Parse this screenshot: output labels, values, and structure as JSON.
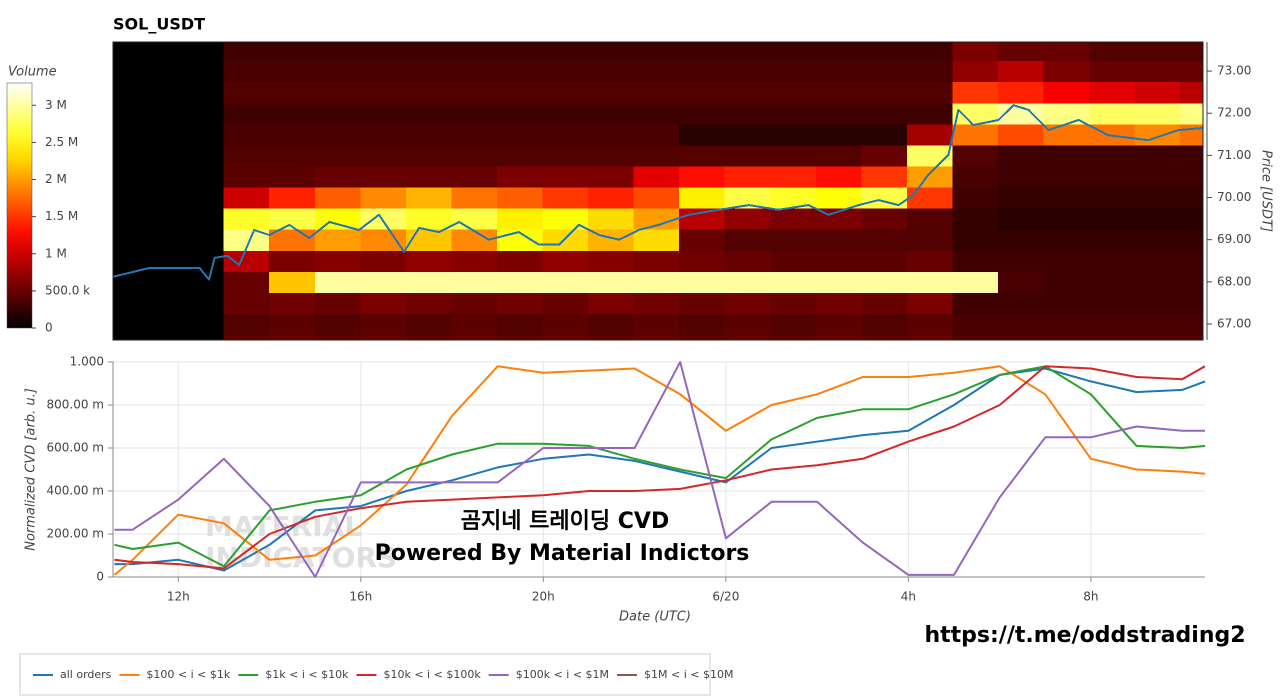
{
  "chart_data": [
    {
      "type": "heatmap",
      "title": "SOL_USDT",
      "ylabel": "Price [USDT]",
      "xlim": [
        10.57,
        34.5
      ],
      "ylim": [
        66.62,
        73.69
      ],
      "yticks": [
        {
          "value": 67,
          "label": "67.00"
        },
        {
          "value": 68,
          "label": "68.00"
        },
        {
          "value": 69,
          "label": "69.00"
        },
        {
          "value": 70,
          "label": "70.00"
        },
        {
          "value": 71,
          "label": "71.00"
        },
        {
          "value": 72,
          "label": "72.00"
        },
        {
          "value": 73,
          "label": "73.00"
        }
      ],
      "x_bins": [
        13,
        14,
        15,
        16,
        17,
        18,
        19,
        20,
        21,
        22,
        23,
        24,
        25,
        26,
        27,
        28,
        29,
        30,
        31,
        32,
        33,
        34,
        34.5
      ],
      "y_levels": [
        66.5,
        67,
        67.5,
        68,
        68.5,
        69,
        69.5,
        70,
        70.5,
        71,
        71.5,
        72,
        72.5,
        73,
        73.5
      ],
      "z": [
        [
          450000,
          500000,
          450000,
          500000,
          450000,
          500000,
          450000,
          500000,
          450000,
          500000,
          450000,
          500000,
          450000,
          500000,
          450000,
          500000,
          400000,
          400000,
          400000,
          400000,
          400000,
          400000
        ],
        [
          400000,
          450000,
          400000,
          450000,
          400000,
          450000,
          400000,
          450000,
          400000,
          450000,
          400000,
          450000,
          400000,
          450000,
          400000,
          450000,
          350000,
          350000,
          350000,
          350000,
          350000,
          350000
        ],
        [
          500000,
          550000,
          500000,
          600000,
          550000,
          500000,
          550000,
          500000,
          600000,
          550000,
          500000,
          550000,
          500000,
          550000,
          500000,
          600000,
          300000,
          300000,
          300000,
          300000,
          300000,
          300000
        ],
        [
          500000,
          2200000,
          3000000,
          3000000,
          3000000,
          3000000,
          3000000,
          3000000,
          3000000,
          3000000,
          3000000,
          3000000,
          3000000,
          3000000,
          3000000,
          3000000,
          3000000,
          350000,
          300000,
          300000,
          300000,
          300000
        ],
        [
          900000,
          600000,
          650000,
          600000,
          700000,
          650000,
          600000,
          700000,
          650000,
          600000,
          550000,
          500000,
          450000,
          450000,
          450000,
          500000,
          300000,
          300000,
          300000,
          300000,
          300000,
          300000
        ],
        [
          2900000,
          1800000,
          2000000,
          1900000,
          2200000,
          1900000,
          2500000,
          2300000,
          2100000,
          2300000,
          500000,
          400000,
          400000,
          400000,
          400000,
          400000,
          250000,
          250000,
          250000,
          250000,
          250000,
          250000
        ],
        [
          2600000,
          2700000,
          2500000,
          2800000,
          2600000,
          2700000,
          2400000,
          2500000,
          2300000,
          2000000,
          900000,
          700000,
          600000,
          600000,
          500000,
          400000,
          250000,
          200000,
          200000,
          200000,
          200000,
          200000
        ],
        [
          1000000,
          1400000,
          1700000,
          1900000,
          2100000,
          1800000,
          1700000,
          1500000,
          1400000,
          1600000,
          2400000,
          2700000,
          2600000,
          2500000,
          2700000,
          1500000,
          300000,
          250000,
          250000,
          250000,
          250000,
          250000
        ],
        [
          450000,
          450000,
          500000,
          500000,
          500000,
          500000,
          600000,
          600000,
          600000,
          1100000,
          1300000,
          1400000,
          1400000,
          1300000,
          1500000,
          2000000,
          350000,
          300000,
          300000,
          300000,
          300000,
          300000
        ],
        [
          400000,
          400000,
          400000,
          400000,
          400000,
          400000,
          400000,
          400000,
          400000,
          400000,
          400000,
          400000,
          400000,
          400000,
          500000,
          2800000,
          400000,
          300000,
          300000,
          300000,
          300000,
          300000
        ],
        [
          350000,
          350000,
          350000,
          350000,
          350000,
          350000,
          350000,
          350000,
          350000,
          350000,
          200000,
          200000,
          200000,
          200000,
          200000,
          800000,
          1800000,
          1600000,
          1800000,
          1800000,
          1900000,
          1800000
        ],
        [
          300000,
          300000,
          300000,
          300000,
          300000,
          300000,
          300000,
          300000,
          300000,
          300000,
          300000,
          300000,
          300000,
          300000,
          300000,
          300000,
          2800000,
          3000000,
          2900000,
          2800000,
          2800000,
          2900000
        ],
        [
          400000,
          400000,
          400000,
          400000,
          400000,
          400000,
          400000,
          400000,
          400000,
          400000,
          400000,
          400000,
          400000,
          400000,
          400000,
          400000,
          1500000,
          1400000,
          1200000,
          1100000,
          1000000,
          900000
        ],
        [
          350000,
          350000,
          350000,
          350000,
          350000,
          350000,
          350000,
          350000,
          350000,
          350000,
          350000,
          350000,
          350000,
          350000,
          350000,
          350000,
          700000,
          900000,
          600000,
          500000,
          500000,
          500000
        ],
        [
          300000,
          300000,
          300000,
          300000,
          300000,
          300000,
          300000,
          300000,
          300000,
          300000,
          300000,
          300000,
          300000,
          300000,
          300000,
          300000,
          600000,
          500000,
          500000,
          400000,
          400000,
          400000
        ]
      ],
      "colorbar": {
        "title": "Volume",
        "clim": [
          0,
          3300000
        ],
        "ticks": [
          0,
          {
            "value": 500000,
            "label": "500.0 k"
          },
          {
            "value": 1000000,
            "label": "1 M"
          },
          {
            "value": 1500000,
            "label": "1.5 M"
          },
          {
            "value": 2000000,
            "label": "2 M"
          },
          {
            "value": 2500000,
            "label": "2.5 M"
          },
          {
            "value": 3000000,
            "label": "3 M"
          }
        ]
      },
      "price_line": {
        "color": "#1f77b4",
        "x": [
          10.57,
          11.37,
          12.47,
          12.68,
          12.8,
          13.08,
          13.34,
          13.67,
          14.0,
          14.44,
          14.88,
          15.32,
          15.97,
          16.41,
          16.96,
          17.29,
          17.73,
          18.17,
          18.82,
          19.48,
          19.92,
          20.36,
          20.8,
          21.24,
          21.68,
          22.11,
          22.55,
          23.21,
          23.87,
          24.53,
          25.18,
          25.84,
          26.28,
          26.94,
          27.38,
          27.82,
          28.14,
          28.47,
          28.91,
          29.13,
          29.46,
          30.01,
          30.34,
          30.67,
          31.11,
          31.77,
          32.42,
          33.3,
          33.96,
          34.5
        ],
        "values": [
          68.12,
          68.33,
          68.33,
          68.05,
          68.57,
          68.62,
          68.4,
          69.23,
          69.11,
          69.35,
          69.04,
          69.42,
          69.23,
          69.59,
          68.71,
          69.28,
          69.18,
          69.42,
          69.0,
          69.18,
          68.88,
          68.88,
          69.35,
          69.11,
          69.0,
          69.23,
          69.35,
          69.59,
          69.71,
          69.82,
          69.71,
          69.82,
          69.59,
          69.82,
          69.94,
          69.82,
          70.06,
          70.54,
          71.01,
          72.08,
          71.72,
          71.84,
          72.19,
          72.08,
          71.6,
          71.84,
          71.48,
          71.36,
          71.6,
          71.65
        ]
      }
    },
    {
      "type": "line",
      "xlabel": "Date (UTC)",
      "ylabel": "Normalized CVD [arb. u.]",
      "grid": true,
      "xlim": [
        10.57,
        34.5
      ],
      "ylim": [
        0,
        1
      ],
      "xticks": [
        {
          "value": 12,
          "label": "12h"
        },
        {
          "value": 16,
          "label": "16h"
        },
        {
          "value": 20,
          "label": "20h"
        },
        {
          "value": 24,
          "label": "6/20"
        },
        {
          "value": 28,
          "label": "4h"
        },
        {
          "value": 32,
          "label": "8h"
        }
      ],
      "yticks": [
        0,
        {
          "value": 0.2,
          "label": "200.00 m"
        },
        {
          "value": 0.4,
          "label": "400.00 m"
        },
        {
          "value": 0.6,
          "label": "600.00 m"
        },
        {
          "value": 0.8,
          "label": "800.00 m"
        },
        {
          "value": 1,
          "label": "1.000"
        }
      ],
      "x": [
        10.6,
        11,
        12,
        13,
        14,
        15,
        16,
        17,
        18,
        19,
        20,
        21,
        22,
        23,
        24,
        25,
        26,
        27,
        28,
        29,
        30,
        31,
        32,
        33,
        34,
        34.5
      ],
      "series": [
        {
          "name": "all orders",
          "color": "#1f77b4",
          "values": [
            0.06,
            0.06,
            0.08,
            0.03,
            0.15,
            0.31,
            0.33,
            0.4,
            0.45,
            0.51,
            0.55,
            0.57,
            0.54,
            0.49,
            0.44,
            0.6,
            0.63,
            0.66,
            0.68,
            0.8,
            0.94,
            0.97,
            0.91,
            0.86,
            0.87,
            0.91
          ]
        },
        {
          "name": "$100 < i < $1k",
          "color": "#ff7f0e",
          "values": [
            0.01,
            0.08,
            0.29,
            0.25,
            0.08,
            0.1,
            0.24,
            0.43,
            0.75,
            0.98,
            0.95,
            0.96,
            0.97,
            0.85,
            0.68,
            0.8,
            0.85,
            0.93,
            0.93,
            0.95,
            0.98,
            0.85,
            0.55,
            0.5,
            0.49,
            0.48
          ]
        },
        {
          "name": "$1k < i < $10k",
          "color": "#2ca02c",
          "values": [
            0.15,
            0.13,
            0.16,
            0.05,
            0.31,
            0.35,
            0.38,
            0.5,
            0.57,
            0.62,
            0.62,
            0.61,
            0.55,
            0.5,
            0.46,
            0.64,
            0.74,
            0.78,
            0.78,
            0.85,
            0.94,
            0.98,
            0.85,
            0.61,
            0.6,
            0.61
          ]
        },
        {
          "name": "$10k < i < $100k",
          "color": "#d62728",
          "values": [
            0.08,
            0.07,
            0.06,
            0.04,
            0.2,
            0.28,
            0.32,
            0.35,
            0.36,
            0.37,
            0.38,
            0.4,
            0.4,
            0.41,
            0.45,
            0.5,
            0.52,
            0.55,
            0.63,
            0.7,
            0.8,
            0.98,
            0.97,
            0.93,
            0.92,
            0.98
          ]
        },
        {
          "name": "$100k < i < $1M",
          "color": "#9467bd",
          "values": [
            0.22,
            0.22,
            0.36,
            0.55,
            0.33,
            0.0,
            0.44,
            0.44,
            0.44,
            0.44,
            0.6,
            0.6,
            0.6,
            1.0,
            0.18,
            0.35,
            0.35,
            0.16,
            0.01,
            0.01,
            0.37,
            0.65,
            0.65,
            0.7,
            0.68,
            0.68
          ]
        },
        {
          "name": "$1M < i < $10M",
          "color": "#8c564b",
          "values": [
            null,
            null,
            null,
            null,
            null,
            null,
            null,
            null,
            null,
            null,
            null,
            null,
            null,
            null,
            null,
            null,
            null,
            null,
            null,
            null,
            null,
            null,
            null,
            null,
            null,
            null
          ]
        }
      ]
    }
  ],
  "annotations": {
    "overlay_title": "곰지네 트레이딩 CVD",
    "overlay_subtitle": "Powered By Material Indictors",
    "link": "https://t.me/oddstrading2",
    "watermark": [
      "MATERIAL",
      "INDICATORS"
    ]
  }
}
